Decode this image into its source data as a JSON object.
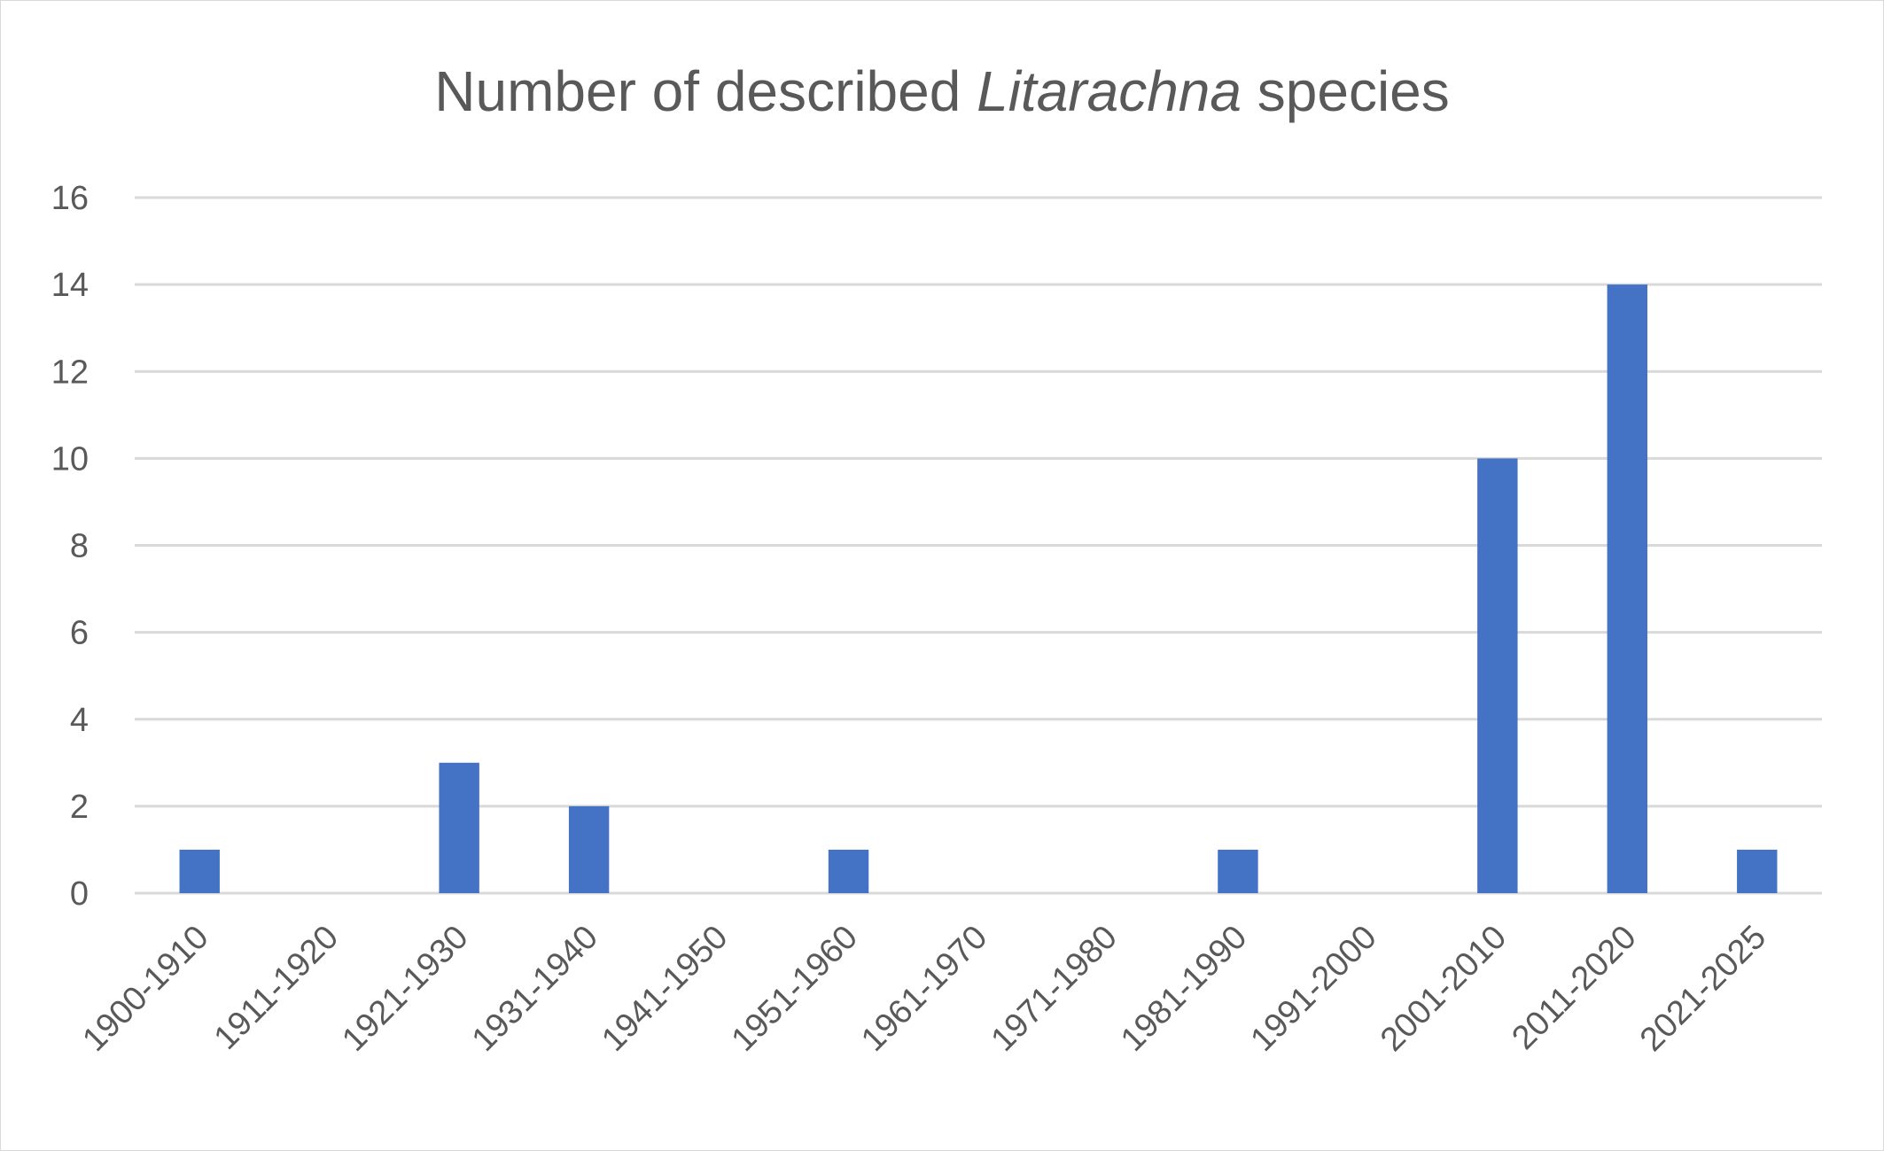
{
  "chart_data": {
    "type": "bar",
    "title": {
      "before": "Number of described ",
      "italic": "Litarachna",
      "after": " species"
    },
    "xlabel": "",
    "ylabel": "",
    "categories": [
      "1900-1910",
      "1911-1920",
      "1921-1930",
      "1931-1940",
      "1941-1950",
      "1951-1960",
      "1961-1970",
      "1971-1980",
      "1981-1990",
      "1991-2000",
      "2001-2010",
      "2011-2020",
      "2021-2025"
    ],
    "values": [
      1,
      0,
      3,
      2,
      0,
      1,
      0,
      0,
      1,
      0,
      10,
      14,
      1
    ],
    "ylim": [
      0,
      16
    ],
    "yticks": [
      "0",
      "2",
      "4",
      "6",
      "8",
      "10",
      "12",
      "14",
      "16"
    ],
    "grid": true,
    "legend": "none",
    "colors": {
      "bar": "#4472c4",
      "grid": "#d9d9d9",
      "text": "#595959"
    }
  }
}
